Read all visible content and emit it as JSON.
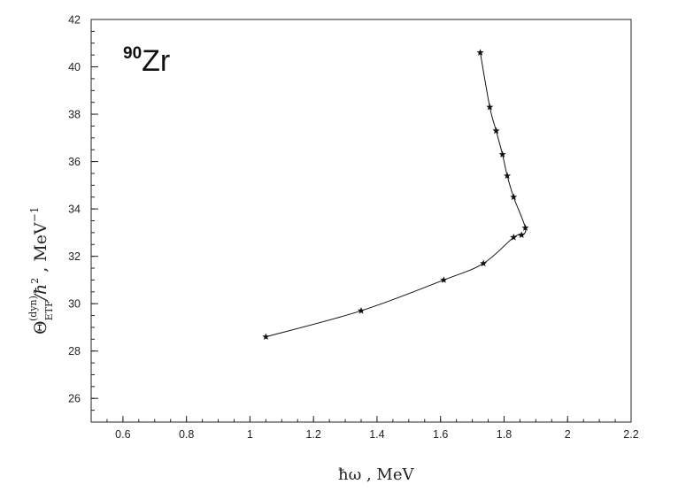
{
  "chart_data": {
    "type": "line",
    "title": "",
    "annotation": {
      "mass_number": "90",
      "element": "Zr"
    },
    "xlabel": "ħω ,  MeV",
    "ylabel": {
      "symbol": "Θ",
      "superscript": "(dyn)",
      "subscript": "ETF",
      "rest": "/ħ",
      "power": "2",
      "unit": " ,  MeV",
      "unit_power": "−1"
    },
    "xlim": [
      0.5,
      2.2
    ],
    "ylim": [
      25,
      42
    ],
    "xticks": [
      0.6,
      0.8,
      1,
      1.2,
      1.4,
      1.6,
      1.8,
      2,
      2.2
    ],
    "xtick_labels": [
      "0.6",
      "0.8",
      "1",
      "1.2",
      "1.4",
      "1.6",
      "1.8",
      "2",
      "2.2"
    ],
    "yticks": [
      26,
      28,
      30,
      32,
      34,
      36,
      38,
      40,
      42
    ],
    "ytick_labels": [
      "26",
      "28",
      "30",
      "32",
      "34",
      "36",
      "38",
      "40",
      "42"
    ],
    "grid": false,
    "series": [
      {
        "marker": "star",
        "color": "#111111",
        "points": [
          {
            "x": 1.05,
            "y": 28.6
          },
          {
            "x": 1.35,
            "y": 29.7
          },
          {
            "x": 1.61,
            "y": 31.0
          },
          {
            "x": 1.735,
            "y": 31.7
          },
          {
            "x": 1.83,
            "y": 32.8
          },
          {
            "x": 1.855,
            "y": 32.9
          },
          {
            "x": 1.867,
            "y": 33.2
          },
          {
            "x": 1.83,
            "y": 34.5
          },
          {
            "x": 1.81,
            "y": 35.4
          },
          {
            "x": 1.795,
            "y": 36.3
          },
          {
            "x": 1.775,
            "y": 37.3
          },
          {
            "x": 1.755,
            "y": 38.3
          },
          {
            "x": 1.725,
            "y": 40.6
          }
        ]
      }
    ]
  }
}
